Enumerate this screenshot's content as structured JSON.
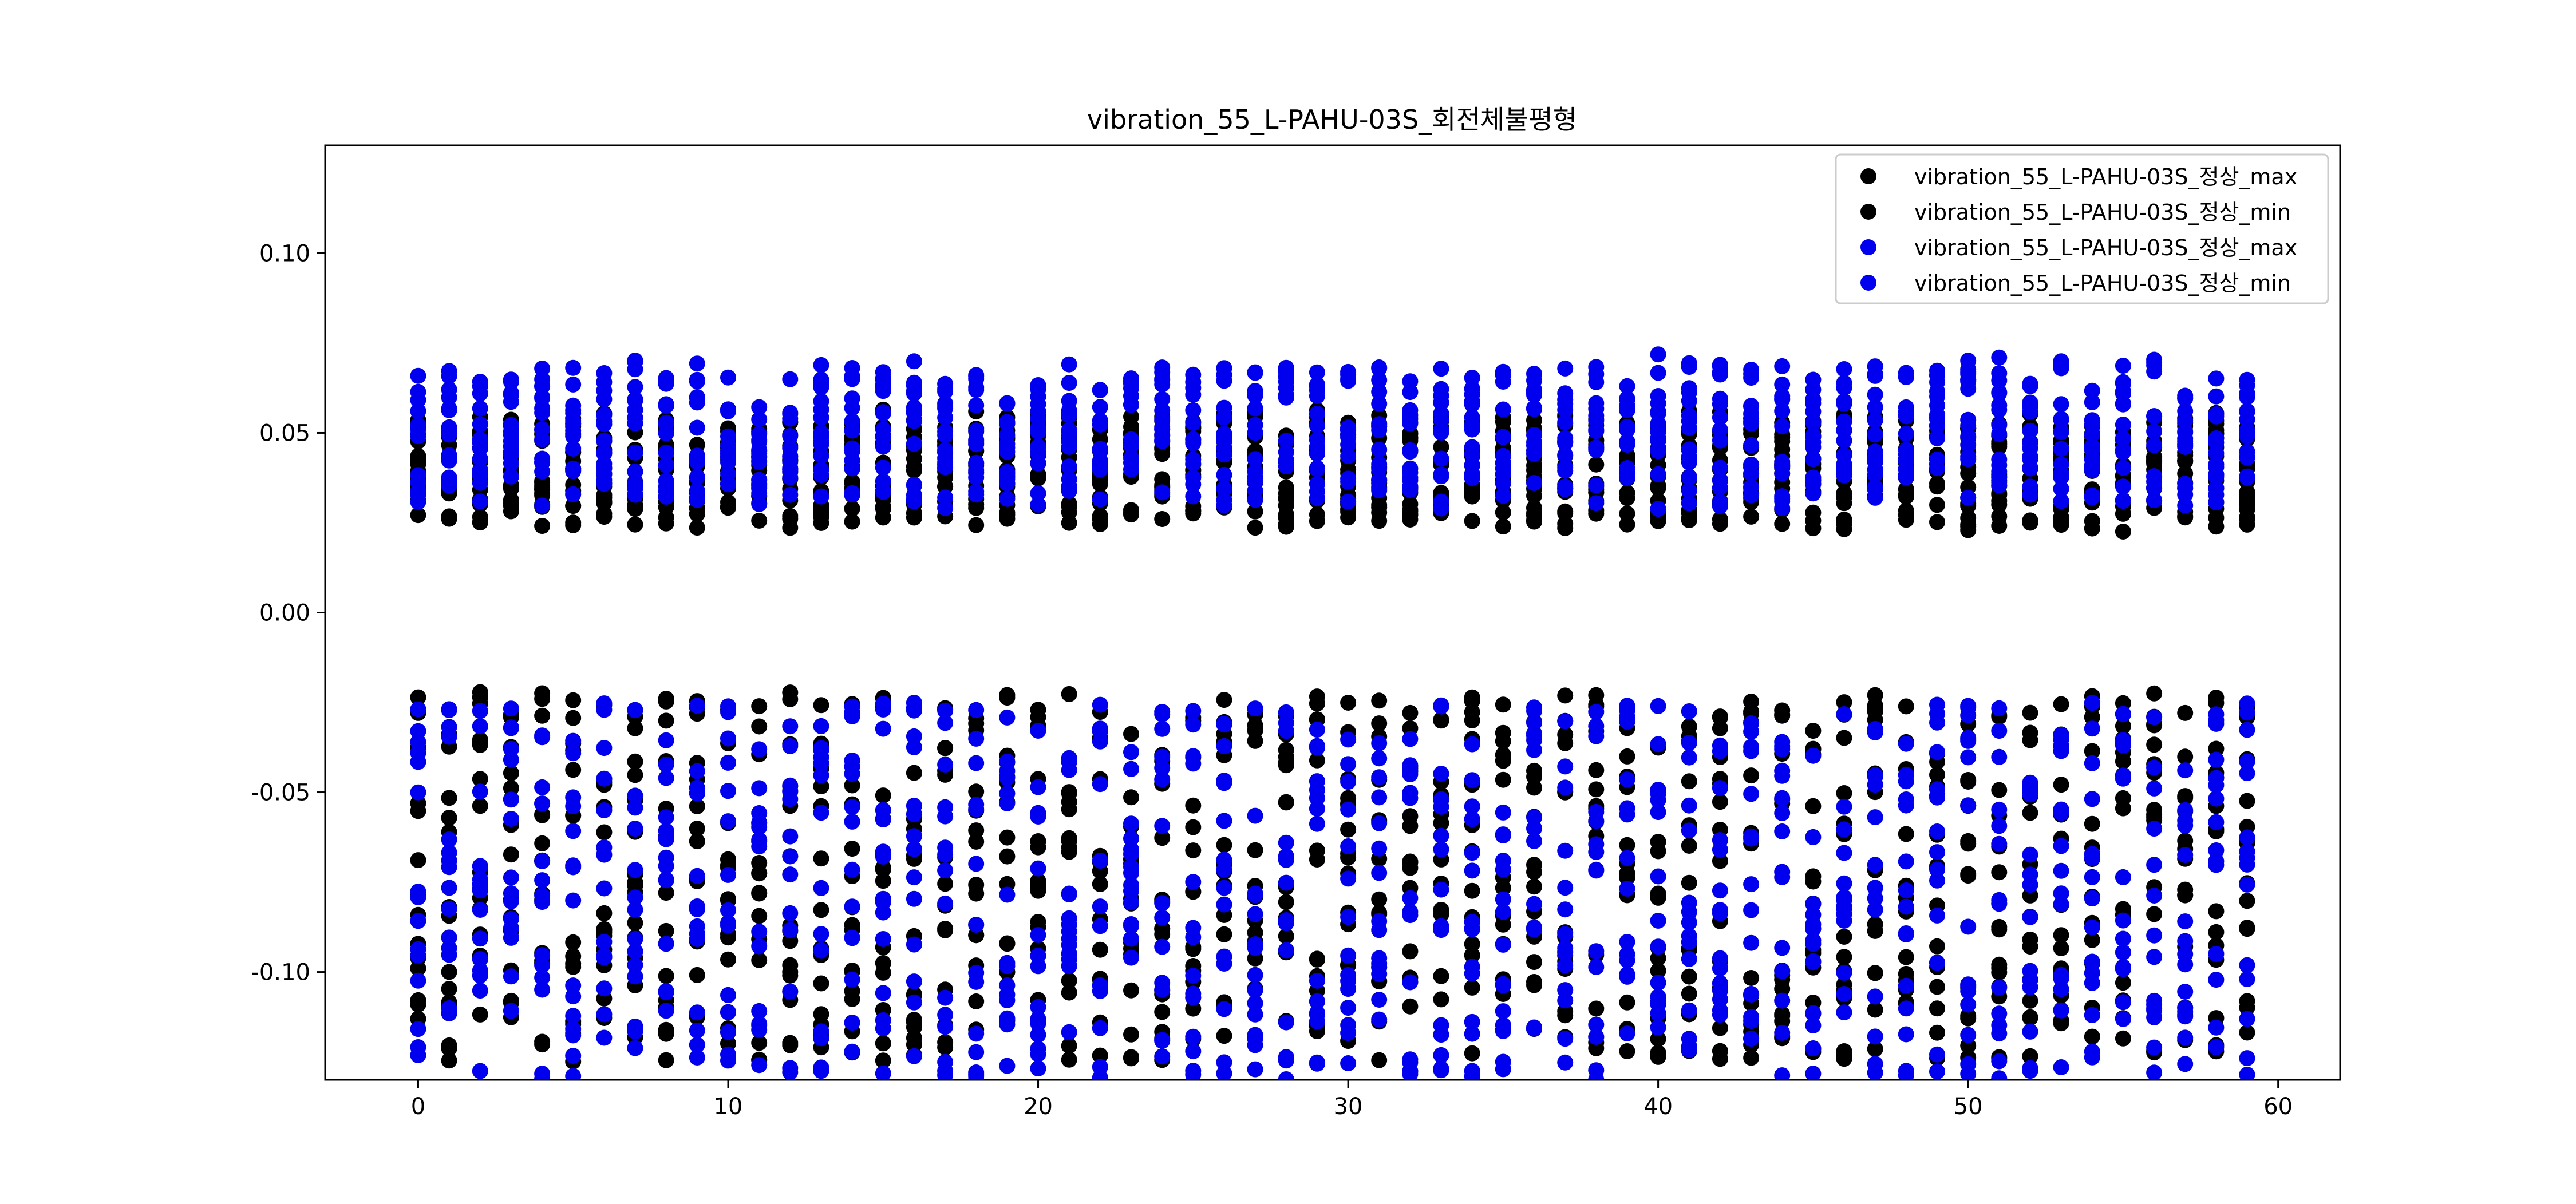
{
  "chart_data": {
    "type": "scatter",
    "title": "vibration_55_L-PAHU-03S_회전체불평형",
    "xlabel": "",
    "ylabel": "",
    "xlim": [
      -3,
      62
    ],
    "ylim": [
      -0.13,
      0.13
    ],
    "x_ticks": [
      0,
      10,
      20,
      30,
      40,
      50,
      60
    ],
    "x_tick_labels": [
      "0",
      "10",
      "20",
      "30",
      "40",
      "50",
      "60"
    ],
    "y_ticks": [
      0.1,
      0.05,
      0.0,
      -0.05,
      -0.1
    ],
    "y_tick_labels": [
      "0.10",
      "0.05",
      "0.00",
      "-0.05",
      "-0.10"
    ],
    "legend_position": "top-right",
    "grid": false,
    "series": [
      {
        "name": "vibration_55_L-PAHU-03S_정상_max",
        "color": "#000000",
        "kind": "max",
        "y_range": [
          0.022,
          0.057
        ]
      },
      {
        "name": "vibration_55_L-PAHU-03S_정상_min",
        "color": "#000000",
        "kind": "min",
        "y_range": [
          -0.125,
          -0.022
        ]
      },
      {
        "name": "vibration_55_L-PAHU-03S_정상_max",
        "color": "#0000ee",
        "kind": "max",
        "y_range": [
          0.028,
          0.072
        ]
      },
      {
        "name": "vibration_55_L-PAHU-03S_정상_min",
        "color": "#0000ee",
        "kind": "min",
        "y_range": [
          -0.13,
          -0.025
        ]
      }
    ],
    "x_values": "integers 0 to 59, 15 samples per x per series"
  }
}
